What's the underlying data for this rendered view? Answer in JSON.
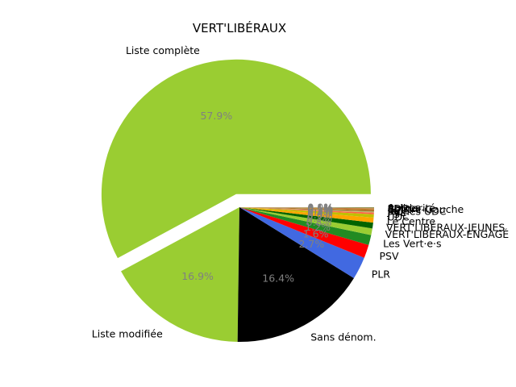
{
  "chart_data": {
    "type": "pie",
    "title": "VERT'LIBÉRAUX",
    "unit": "%",
    "start_angle_deg": 0,
    "direction": "counterclockwise",
    "exploded_slice": "Liste complète",
    "slices": [
      {
        "label": "Liste complète",
        "value": 57.9,
        "pct_label": "57.9%",
        "color": "#9acd32"
      },
      {
        "label": "Liste modifiée",
        "value": 16.9,
        "pct_label": "16.9%",
        "color": "#9acd32"
      },
      {
        "label": "Sans dénom.",
        "value": 16.4,
        "pct_label": "16.4%",
        "color": "#000000"
      },
      {
        "label": "PLR",
        "value": 2.7,
        "pct_label": "2.7%",
        "color": "#4169e1"
      },
      {
        "label": "PSV",
        "value": 1.6,
        "pct_label": "1.6%",
        "color": "#ff0000"
      },
      {
        "label": "Les Vert·e·s",
        "value": 1.2,
        "pct_label": "1.2%",
        "color": "#228b22"
      },
      {
        "label": "VERT'LIBÉRAUX-ENGAGÉ",
        "value": 0.8,
        "pct_label": "0.8%",
        "color": "#9acd32"
      },
      {
        "label": "VERT'LIBÉRAUX-JEUNES",
        "value": 0.7,
        "pct_label": "0.7%",
        "color": "#006400"
      },
      {
        "label": "Le Centre",
        "value": 0.6,
        "pct_label": "0.6%",
        "color": "#ffa500"
      },
      {
        "label": "UDC",
        "value": 0.4,
        "pct_label": "0.4%",
        "color": "#c0c000"
      },
      {
        "label": "PS",
        "value": 0.2,
        "pct_label": "0.2%",
        "color": "#ff6347"
      },
      {
        "label": "PVL",
        "value": 0.15,
        "pct_label": "0.1%",
        "color": "#bdb76b"
      },
      {
        "label": "Jeunes UDC",
        "value": 0.12,
        "pct_label": "0.1%",
        "color": "#8b4513"
      },
      {
        "label": "PEV",
        "value": 0.1,
        "pct_label": "0.1%",
        "color": "#daa520"
      },
      {
        "label": "Centre-Gauche",
        "value": 0.08,
        "pct_label": "0.1%",
        "color": "#a0522d"
      },
      {
        "label": "PDC",
        "value": 0.07,
        "pct_label": "0.1%",
        "color": "#cd853f"
      },
      {
        "label": "Solidarité",
        "value": 0.06,
        "pct_label": "0.1%",
        "color": "#808000"
      },
      {
        "label": "Autres",
        "value": 0.05,
        "pct_label": "0.0%",
        "color": "#a9a9a9"
      }
    ]
  }
}
